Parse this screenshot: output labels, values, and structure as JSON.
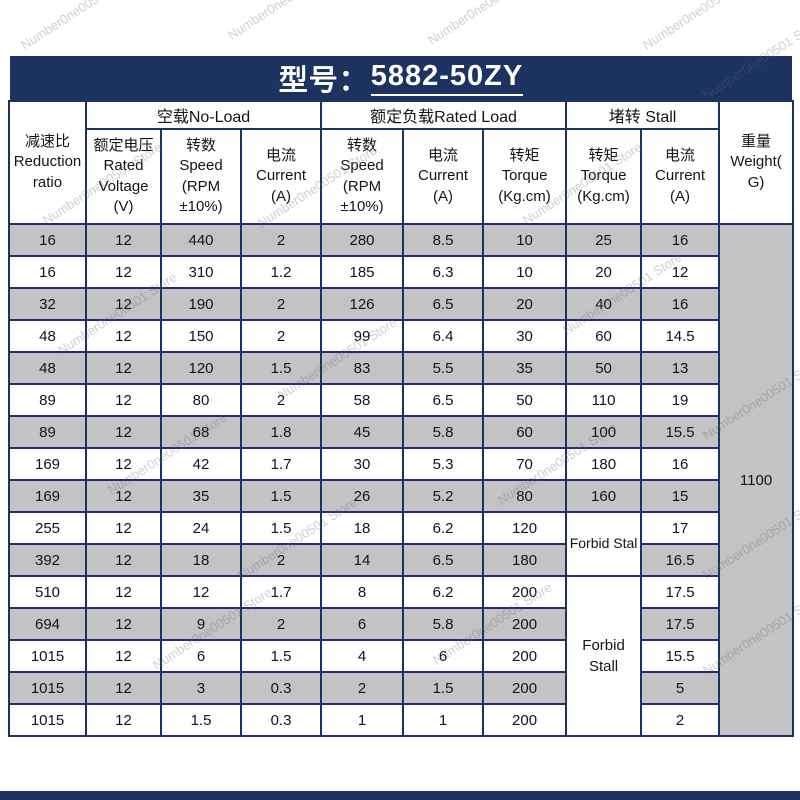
{
  "title": {
    "prefix": "型号：",
    "model": "5882-50ZY"
  },
  "watermark_text": "Number0ne00501 Store",
  "colors": {
    "navy": "#1c3361",
    "row_gray": "#c3c3c3",
    "row_white": "#ffffff"
  },
  "chart_data": {
    "type": "table",
    "title": "型号：5882-50ZY",
    "group_headers": [
      {
        "label": "空载No-Load",
        "colspan": 3
      },
      {
        "label": "额定负载Rated Load",
        "colspan": 3
      },
      {
        "label": "堵转 Stall",
        "colspan": 2
      }
    ],
    "columns": [
      "减速比 Reduction ratio",
      "额定电压Rated Voltage (V)",
      "转数 Speed (RPM ±10%)",
      "电流 Current (A)",
      "转数 Speed (RPM ±10%)",
      "电流 Current (A)",
      "转矩 Torque (Kg.cm)",
      "转矩 Torque (Kg.cm)",
      "电流 Current (A)",
      "重量 Weight( G)"
    ],
    "rows": [
      [
        "16",
        "12",
        "440",
        "2",
        "280",
        "8.5",
        "10",
        "25",
        "16",
        {
          "text": "1100",
          "rowspan": 16,
          "name": "weight-value"
        }
      ],
      [
        "16",
        "12",
        "310",
        "1.2",
        "185",
        "6.3",
        "10",
        "20",
        "12"
      ],
      [
        "32",
        "12",
        "190",
        "2",
        "126",
        "6.5",
        "20",
        "40",
        "16"
      ],
      [
        "48",
        "12",
        "150",
        "2",
        "99",
        "6.4",
        "30",
        "60",
        "14.5"
      ],
      [
        "48",
        "12",
        "120",
        "1.5",
        "83",
        "5.5",
        "35",
        "50",
        "13"
      ],
      [
        "89",
        "12",
        "80",
        "2",
        "58",
        "6.5",
        "50",
        "110",
        "19"
      ],
      [
        "89",
        "12",
        "68",
        "1.8",
        "45",
        "5.8",
        "60",
        "100",
        "15.5"
      ],
      [
        "169",
        "12",
        "42",
        "1.7",
        "30",
        "5.3",
        "70",
        "180",
        "16"
      ],
      [
        "169",
        "12",
        "35",
        "1.5",
        "26",
        "5.2",
        "80",
        "160",
        "15"
      ],
      [
        "255",
        "12",
        "24",
        "1.5",
        "18",
        "6.2",
        "120",
        {
          "text": "Forbid Stal",
          "rowspan": 2,
          "name": "forbid-stall-note-1",
          "nowrap": true
        },
        "17"
      ],
      [
        "392",
        "12",
        "18",
        "2",
        "14",
        "6.5",
        "180",
        "16.5"
      ],
      [
        "510",
        "12",
        "12",
        "1.7",
        "8",
        "6.2",
        "200",
        {
          "text": "Forbid Stall",
          "rowspan": 5,
          "name": "forbid-stall-note-2"
        },
        "17.5"
      ],
      [
        "694",
        "12",
        "9",
        "2",
        "6",
        "5.8",
        "200",
        "17.5"
      ],
      [
        "1015",
        "12",
        "6",
        "1.5",
        "4",
        "6",
        "200",
        "15.5"
      ],
      [
        "1015",
        "12",
        "3",
        "0.3",
        "2",
        "1.5",
        "200",
        "5"
      ],
      [
        "1015",
        "12",
        "1.5",
        "0.3",
        "1",
        "1",
        "200",
        "2"
      ]
    ]
  }
}
